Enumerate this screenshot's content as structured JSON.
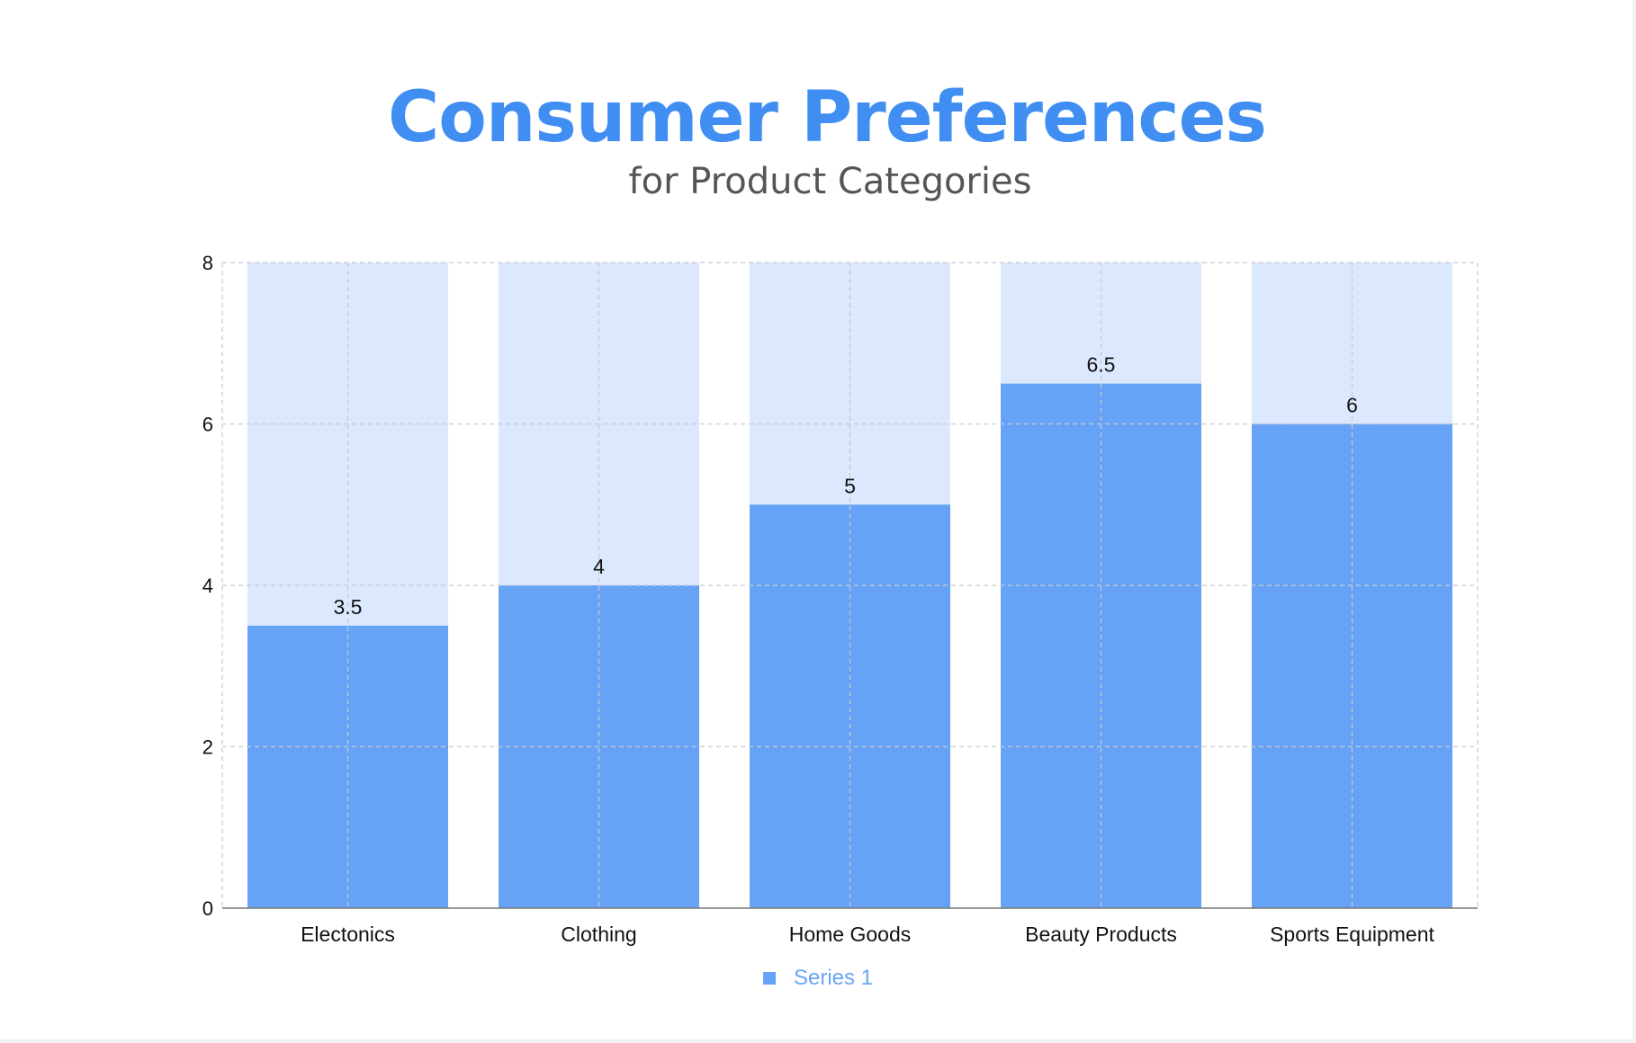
{
  "header": {
    "title": "Consumer Preferences",
    "subtitle": "for Product Categories"
  },
  "colors": {
    "bar": "#66a3f7",
    "bar_background": "#dbe8fd",
    "title": "#418ef3",
    "grid": "#c9c9d2",
    "axis": "#777777",
    "legend_text": "#6aa5f6"
  },
  "chart_data": {
    "type": "bar",
    "title": "Consumer Preferences",
    "subtitle": "for Product Categories",
    "categories": [
      "Electonics",
      "Clothing",
      "Home Goods",
      "Beauty Products",
      "Sports Equipment"
    ],
    "series": [
      {
        "name": "Series 1",
        "values": [
          3.5,
          4,
          5,
          6.5,
          6
        ]
      }
    ],
    "data_labels": [
      "3.5",
      "4",
      "5",
      "6.5",
      "6"
    ],
    "background_bar_max": 8,
    "ylim": [
      0,
      8
    ],
    "yticks": [
      0,
      2,
      4,
      6,
      8
    ],
    "xlabel": "",
    "ylabel": "",
    "grid": true,
    "grid_style": "dashed",
    "legend_position": "bottom-center"
  }
}
